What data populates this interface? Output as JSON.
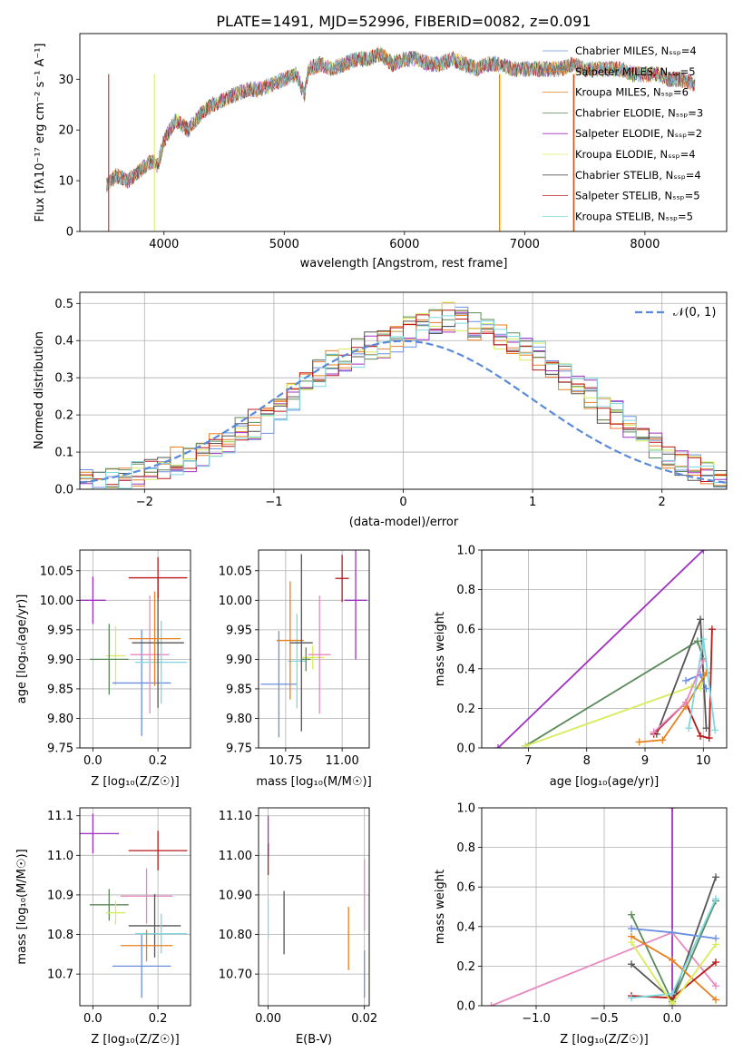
{
  "title": "PLATE=1491, MJD=52996, FIBERID=0082, z=0.091",
  "colors": {
    "Chabrier MILES": "#6b8fe0",
    "Salpeter MILES": "#e87f3a",
    "Kroupa MILES": "#e8801f",
    "Chabrier ELODIE": "#5a8a5a",
    "Salpeter ELODIE": "#a030c0",
    "Kroupa ELODIE": "#d8ec5a",
    "Chabrier STELIB": "#555555",
    "Salpeter STELIB": "#b81818",
    "Kroupa STELIB": "#7dd8e0",
    "pink": "#e888c0",
    "normal": "#5a8ad8"
  },
  "chart_data": [
    {
      "type": "line",
      "xlabel": "wavelength [Angstrom, rest frame]",
      "ylabel": "Flux [f_λ 10^-17 erg cm^-2 s^-1 A^-1]",
      "ylim": [
        0,
        39
      ],
      "xlim": [
        3300,
        8680
      ],
      "xticks": [
        4000,
        5000,
        6000,
        7000,
        8000
      ],
      "yticks": [
        0,
        10,
        20,
        30
      ],
      "legend_position": "top-right",
      "series": [
        {
          "name": "Chabrier MILES, N_SSP=4"
        },
        {
          "name": "Salpeter MILES, N_SSP=5"
        },
        {
          "name": "Kroupa MILES, N_SSP=6"
        },
        {
          "name": "Chabrier ELODIE, N_SSP=3"
        },
        {
          "name": "Salpeter ELODIE, N_SSP=2"
        },
        {
          "name": "Kroupa ELODIE, N_SSP=4"
        },
        {
          "name": "Chabrier STELIB, N_SSP=4"
        },
        {
          "name": "Salpeter STELIB, N_SSP=5"
        },
        {
          "name": "Kroupa STELIB, N_SSP=5"
        }
      ],
      "spectrum": {
        "x": [
          3520,
          3600,
          3700,
          3800,
          3900,
          3950,
          4000,
          4100,
          4200,
          4300,
          4400,
          4500,
          4600,
          4700,
          4800,
          4900,
          5000,
          5100,
          5170,
          5200,
          5300,
          5400,
          5500,
          5600,
          5700,
          5800,
          5900,
          6000,
          6100,
          6200,
          6300,
          6400,
          6500,
          6600,
          6700,
          6800,
          6900,
          7000,
          7100,
          7200,
          7300,
          7400,
          7500,
          7600,
          7700,
          7800,
          7900,
          8000,
          8100,
          8200,
          8300,
          8420
        ],
        "y": [
          9,
          11,
          10,
          12,
          14,
          13,
          18,
          22,
          20,
          23,
          25,
          26,
          27,
          28,
          28,
          29,
          30,
          31,
          27,
          32,
          33,
          32,
          33,
          34,
          34,
          35,
          33,
          34,
          34,
          33,
          33,
          34,
          33,
          32,
          33,
          33,
          32,
          32,
          32,
          32,
          32,
          33,
          32,
          32,
          32,
          32,
          31,
          31,
          31,
          30,
          30,
          29
        ]
      }
    },
    {
      "type": "bar",
      "xlabel": "(data-model)/error",
      "ylabel": "Normed distribution",
      "xlim": [
        -2.5,
        2.5
      ],
      "ylim": [
        0,
        0.53
      ],
      "xticks": [
        -2,
        -1,
        0,
        1,
        2
      ],
      "yticks": [
        0.0,
        0.1,
        0.2,
        0.3,
        0.4,
        0.5
      ],
      "legend": "N(0,1)",
      "legend_position": "top-right",
      "bin_width": 0.1,
      "bin_start": -2.5,
      "histograms": [
        [
          0.02,
          0.02,
          0.03,
          0.03,
          0.04,
          0.05,
          0.05,
          0.06,
          0.07,
          0.09,
          0.11,
          0.12,
          0.14,
          0.15,
          0.18,
          0.2,
          0.24,
          0.28,
          0.31,
          0.33,
          0.33,
          0.36,
          0.38,
          0.38,
          0.39,
          0.41,
          0.43,
          0.45,
          0.45,
          0.46,
          0.44,
          0.43,
          0.42,
          0.41,
          0.4,
          0.37,
          0.35,
          0.32,
          0.3,
          0.27,
          0.23,
          0.21,
          0.17,
          0.14,
          0.12,
          0.1,
          0.08,
          0.07,
          0.05,
          0.04
        ],
        [
          0.01,
          0.02,
          0.02,
          0.03,
          0.04,
          0.05,
          0.06,
          0.07,
          0.09,
          0.1,
          0.12,
          0.14,
          0.15,
          0.17,
          0.2,
          0.23,
          0.26,
          0.29,
          0.31,
          0.34,
          0.35,
          0.37,
          0.38,
          0.39,
          0.41,
          0.43,
          0.44,
          0.46,
          0.47,
          0.45,
          0.44,
          0.42,
          0.41,
          0.39,
          0.38,
          0.36,
          0.33,
          0.31,
          0.28,
          0.25,
          0.22,
          0.19,
          0.16,
          0.14,
          0.11,
          0.09,
          0.07,
          0.06,
          0.04,
          0.03
        ],
        [
          0.02,
          0.02,
          0.03,
          0.03,
          0.05,
          0.05,
          0.06,
          0.08,
          0.09,
          0.1,
          0.12,
          0.13,
          0.15,
          0.18,
          0.2,
          0.22,
          0.25,
          0.29,
          0.32,
          0.33,
          0.36,
          0.37,
          0.39,
          0.4,
          0.42,
          0.42,
          0.44,
          0.45,
          0.45,
          0.44,
          0.43,
          0.43,
          0.41,
          0.4,
          0.37,
          0.35,
          0.33,
          0.3,
          0.28,
          0.24,
          0.21,
          0.19,
          0.16,
          0.13,
          0.11,
          0.09,
          0.07,
          0.05,
          0.04,
          0.03
        ],
        [
          0.02,
          0.02,
          0.03,
          0.04,
          0.04,
          0.05,
          0.06,
          0.07,
          0.09,
          0.11,
          0.12,
          0.14,
          0.16,
          0.18,
          0.2,
          0.23,
          0.26,
          0.28,
          0.31,
          0.34,
          0.36,
          0.37,
          0.38,
          0.4,
          0.41,
          0.43,
          0.44,
          0.45,
          0.46,
          0.45,
          0.44,
          0.43,
          0.41,
          0.39,
          0.37,
          0.35,
          0.33,
          0.3,
          0.27,
          0.24,
          0.21,
          0.18,
          0.16,
          0.13,
          0.11,
          0.09,
          0.07,
          0.05,
          0.04,
          0.03
        ]
      ]
    },
    {
      "type": "scatter",
      "xlabel": "Z [log10(Z/Z⊙)]",
      "ylabel": "age [log10(age/yr)]",
      "xlim": [
        -0.04,
        0.3
      ],
      "ylim": [
        9.75,
        10.085
      ],
      "xticks": [
        0.0,
        0.2
      ],
      "yticks": [
        9.75,
        9.8,
        9.85,
        9.9,
        9.95,
        10.0,
        10.05
      ],
      "points": [
        {
          "x": 0.0,
          "y": 10.0,
          "xerr": 0.04,
          "yerr": 0.04,
          "c": "Salpeter ELODIE"
        },
        {
          "x": 0.07,
          "y": 9.906,
          "xerr": 0.03,
          "yerr": 0.05,
          "c": "Kroupa ELODIE"
        },
        {
          "x": 0.05,
          "y": 9.9,
          "xerr": 0.06,
          "yerr": 0.06,
          "c": "Chabrier ELODIE"
        },
        {
          "x": 0.15,
          "y": 9.86,
          "xerr": 0.09,
          "yerr": 0.09,
          "c": "Chabrier MILES"
        },
        {
          "x": 0.175,
          "y": 9.908,
          "xerr": 0.06,
          "yerr": 0.1,
          "c": "pink"
        },
        {
          "x": 0.21,
          "y": 9.895,
          "xerr": 0.08,
          "yerr": 0.07,
          "c": "Kroupa STELIB"
        },
        {
          "x": 0.2,
          "y": 9.928,
          "xerr": 0.08,
          "yerr": 0.11,
          "c": "Chabrier STELIB"
        },
        {
          "x": 0.19,
          "y": 9.935,
          "xerr": 0.08,
          "yerr": 0.08,
          "c": "Kroupa MILES"
        },
        {
          "x": 0.2,
          "y": 10.038,
          "xerr": 0.09,
          "yerr": 0.035,
          "c": "Salpeter STELIB"
        }
      ]
    },
    {
      "type": "scatter",
      "xlabel": "mass [log10(M/M⊙)]",
      "ylabel": "",
      "xlim": [
        10.63,
        11.12
      ],
      "ylim": [
        9.75,
        10.085
      ],
      "xticks": [
        10.75,
        11.0
      ],
      "yticks": [
        9.75,
        9.8,
        9.85,
        9.9,
        9.95,
        10.0,
        10.05
      ],
      "points": [
        {
          "x": 11.06,
          "y": 10.0,
          "xerr": 0.05,
          "yerr": 0.1,
          "c": "Salpeter ELODIE"
        },
        {
          "x": 10.87,
          "y": 9.903,
          "xerr": 0.05,
          "yerr": 0.02,
          "c": "Kroupa ELODIE"
        },
        {
          "x": 10.9,
          "y": 9.908,
          "xerr": 0.05,
          "yerr": 0.1,
          "c": "pink"
        },
        {
          "x": 10.72,
          "y": 9.858,
          "xerr": 0.08,
          "yerr": 0.09,
          "c": "Chabrier MILES"
        },
        {
          "x": 10.8,
          "y": 9.897,
          "xerr": 0.04,
          "yerr": 0.08,
          "c": "Kroupa STELIB"
        },
        {
          "x": 10.77,
          "y": 9.932,
          "xerr": 0.06,
          "yerr": 0.1,
          "c": "Kroupa MILES"
        },
        {
          "x": 10.82,
          "y": 9.928,
          "xerr": 0.05,
          "yerr": 0.15,
          "c": "Chabrier STELIB"
        },
        {
          "x": 10.84,
          "y": 9.9,
          "xerr": 0.02,
          "yerr": 0.02,
          "c": "Chabrier ELODIE"
        },
        {
          "x": 11.0,
          "y": 10.037,
          "xerr": 0.03,
          "yerr": 0.04,
          "c": "Salpeter STELIB"
        }
      ]
    },
    {
      "type": "line",
      "xlabel": "age [log10(age/yr)]",
      "ylabel": "mass weight",
      "xlim": [
        6.2,
        10.4
      ],
      "ylim": [
        0,
        1
      ],
      "xticks": [
        7,
        8,
        9,
        10
      ],
      "yticks": [
        0.0,
        0.2,
        0.4,
        0.6,
        0.8,
        1.0
      ],
      "series": [
        {
          "c": "Salpeter ELODIE",
          "x": [
            6.48,
            10.0
          ],
          "y": [
            0.0,
            1.0
          ]
        },
        {
          "c": "Chabrier ELODIE",
          "x": [
            6.95,
            9.9,
            10.0
          ],
          "y": [
            0.01,
            0.54,
            0.45
          ]
        },
        {
          "c": "Kroupa ELODIE",
          "x": [
            6.95,
            9.8,
            9.95,
            10.05
          ],
          "y": [
            0.01,
            0.31,
            0.3,
            0.38
          ]
        },
        {
          "c": "Chabrier STELIB",
          "x": [
            9.2,
            9.95,
            10.05
          ],
          "y": [
            0.07,
            0.65,
            0.1
          ]
        },
        {
          "c": "Salpeter STELIB",
          "x": [
            9.15,
            9.7,
            9.95,
            10.1,
            10.15
          ],
          "y": [
            0.07,
            0.23,
            0.06,
            0.05,
            0.6
          ]
        },
        {
          "c": "Chabrier MILES",
          "x": [
            9.7,
            9.95,
            10.05
          ],
          "y": [
            0.34,
            0.37,
            0.3
          ]
        },
        {
          "c": "Kroupa MILES",
          "x": [
            8.9,
            9.3,
            9.7,
            10.05
          ],
          "y": [
            0.03,
            0.04,
            0.21,
            0.38
          ]
        },
        {
          "c": "Kroupa STELIB",
          "x": [
            9.75,
            10.0,
            10.2
          ],
          "y": [
            0.1,
            0.55,
            0.09
          ]
        },
        {
          "c": "pink",
          "x": [
            9.15,
            9.7,
            10.0
          ],
          "y": [
            0.08,
            0.23,
            0.44
          ]
        }
      ]
    },
    {
      "type": "scatter",
      "xlabel": "Z [log10(Z/Z⊙)]",
      "ylabel": "mass [log10(M/M⊙)]",
      "xlim": [
        -0.04,
        0.3
      ],
      "ylim": [
        10.62,
        11.12
      ],
      "xticks": [
        0.0,
        0.2
      ],
      "yticks": [
        10.7,
        10.8,
        10.9,
        11.0,
        11.1
      ],
      "points": [
        {
          "x": 0.0,
          "y": 11.055,
          "xerr": 0.08,
          "yerr": 0.05,
          "c": "Salpeter ELODIE"
        },
        {
          "x": 0.05,
          "y": 10.875,
          "xerr": 0.06,
          "yerr": 0.04,
          "c": "Chabrier ELODIE"
        },
        {
          "x": 0.07,
          "y": 10.855,
          "xerr": 0.03,
          "yerr": 0.03,
          "c": "Kroupa ELODIE"
        },
        {
          "x": 0.2,
          "y": 11.012,
          "xerr": 0.09,
          "yerr": 0.05,
          "c": "Salpeter STELIB"
        },
        {
          "x": 0.165,
          "y": 10.897,
          "xerr": 0.08,
          "yerr": 0.07,
          "c": "pink"
        },
        {
          "x": 0.19,
          "y": 10.822,
          "xerr": 0.08,
          "yerr": 0.08,
          "c": "Chabrier STELIB"
        },
        {
          "x": 0.21,
          "y": 10.802,
          "xerr": 0.08,
          "yerr": 0.05,
          "c": "Kroupa STELIB"
        },
        {
          "x": 0.165,
          "y": 10.772,
          "xerr": 0.08,
          "yerr": 0.04,
          "c": "Kroupa MILES"
        },
        {
          "x": 0.15,
          "y": 10.72,
          "xerr": 0.09,
          "yerr": 0.08,
          "c": "Chabrier MILES"
        }
      ]
    },
    {
      "type": "scatter",
      "xlabel": "E(B-V)",
      "ylabel": "",
      "xlim": [
        -0.002,
        0.021
      ],
      "ylim": [
        10.62,
        11.12
      ],
      "xticks": [
        0.0,
        0.02
      ],
      "yticks": [
        10.7,
        10.8,
        10.9,
        11.0,
        11.1
      ],
      "points": [
        {
          "x": 0.0,
          "y": 11.05,
          "xerr": 0.0,
          "yerr": 0.05,
          "c": "Salpeter ELODIE"
        },
        {
          "x": 0.0,
          "y": 10.99,
          "xerr": 0.0,
          "yerr": 0.04,
          "c": "Salpeter STELIB"
        },
        {
          "x": 0.0,
          "y": 10.84,
          "xerr": 0.0,
          "yerr": 0.05,
          "c": "Kroupa STELIB"
        },
        {
          "x": 0.0033,
          "y": 10.83,
          "xerr": 0.0,
          "yerr": 0.08,
          "c": "Chabrier STELIB"
        },
        {
          "x": 0.0167,
          "y": 10.79,
          "xerr": 0.0,
          "yerr": 0.08,
          "c": "Kroupa MILES"
        },
        {
          "x": 0.02,
          "y": 10.9,
          "xerr": 0.0,
          "yerr": 0.09,
          "c": "pink"
        },
        {
          "x": 0.02,
          "y": 10.7,
          "xerr": 0.0,
          "yerr": 0.06,
          "c": "Chabrier MILES"
        }
      ]
    },
    {
      "type": "line",
      "xlabel": "Z [log10(Z/Z⊙)]",
      "ylabel": "mass weight",
      "xlim": [
        -1.4,
        0.4
      ],
      "ylim": [
        0,
        1
      ],
      "xticks": [
        -1.0,
        -0.5,
        0.0
      ],
      "yticks": [
        0.0,
        0.2,
        0.4,
        0.6,
        0.8,
        1.0
      ],
      "series": [
        {
          "c": "Salpeter ELODIE",
          "x": [
            0.0,
            0.0
          ],
          "y": [
            1.0,
            0.0
          ]
        },
        {
          "c": "pink",
          "x": [
            -1.33,
            0.0,
            0.32
          ],
          "y": [
            0.0,
            0.37,
            0.1
          ]
        },
        {
          "c": "Chabrier ELODIE",
          "x": [
            -0.3,
            0.0,
            0.32
          ],
          "y": [
            0.46,
            0.02,
            0.53
          ]
        },
        {
          "c": "Chabrier STELIB",
          "x": [
            -0.3,
            0.0,
            0.32
          ],
          "y": [
            0.21,
            0.03,
            0.65
          ]
        },
        {
          "c": "Chabrier MILES",
          "x": [
            -0.3,
            0.0,
            0.32
          ],
          "y": [
            0.39,
            0.37,
            0.34
          ]
        },
        {
          "c": "Kroupa MILES",
          "x": [
            -0.3,
            0.0,
            0.32
          ],
          "y": [
            0.35,
            0.23,
            0.03
          ]
        },
        {
          "c": "Salpeter STELIB",
          "x": [
            -0.3,
            0.0,
            0.32
          ],
          "y": [
            0.05,
            0.04,
            0.22
          ]
        },
        {
          "c": "Kroupa STELIB",
          "x": [
            -0.3,
            0.0,
            0.32
          ],
          "y": [
            0.04,
            0.06,
            0.54
          ]
        },
        {
          "c": "Kroupa ELODIE",
          "x": [
            -0.3,
            0.0,
            0.32
          ],
          "y": [
            0.32,
            0.01,
            0.31
          ]
        }
      ]
    }
  ]
}
